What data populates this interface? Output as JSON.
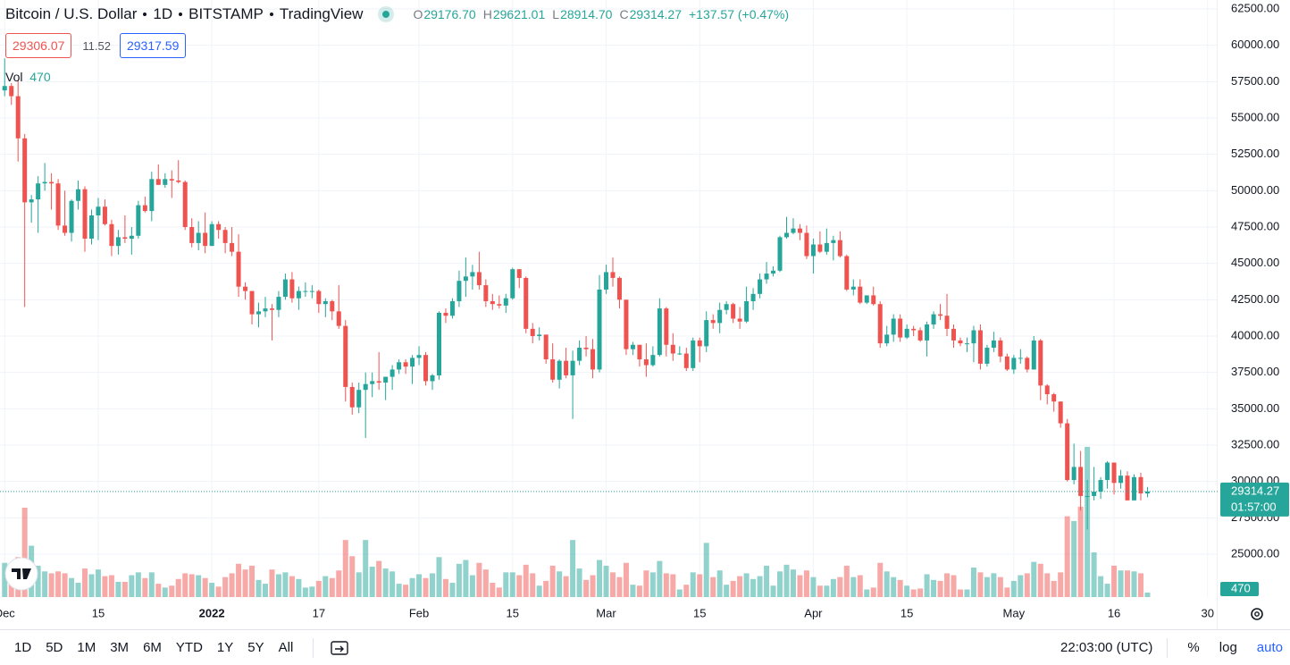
{
  "chart_data": {
    "type": "candlestick",
    "title_parts": [
      "Bitcoin / U.S. Dollar",
      "1D",
      "BITSTAMP",
      "TradingView"
    ],
    "ohlc_legend": [
      {
        "label": "O",
        "text": "29176.70"
      },
      {
        "label": "H",
        "text": "29621.01"
      },
      {
        "label": "L",
        "text": "28914.70"
      },
      {
        "label": "C",
        "text": "29314.27"
      }
    ],
    "change_text": "+137.57 (+0.47%)",
    "bid": "29306.07",
    "spread": "11.52",
    "ask": "29317.59",
    "volume_label": "Vol",
    "countdown": "01:57:00",
    "colors": {
      "up": "#26a69a",
      "down": "#ef5350",
      "volume_up": "rgba(38,166,154,0.5)",
      "volume_down": "rgba(239,83,80,0.5)"
    },
    "grid": true,
    "xlim": [
      -0.7,
      181.5
    ],
    "xticks": [
      {
        "value": 0,
        "label": "Dec"
      },
      {
        "value": 14,
        "label": "15"
      },
      {
        "value": 31,
        "label": "2022"
      },
      {
        "value": 47,
        "label": "17"
      },
      {
        "value": 62,
        "label": "Feb"
      },
      {
        "value": 76,
        "label": "15"
      },
      {
        "value": 90,
        "label": "Mar"
      },
      {
        "value": 104,
        "label": "15"
      },
      {
        "value": 121,
        "label": "Apr"
      },
      {
        "value": 135,
        "label": "15"
      },
      {
        "value": 151,
        "label": "May"
      },
      {
        "value": 166,
        "label": "16"
      },
      {
        "value": 180,
        "label": "30"
      }
    ],
    "ylim": [
      22050,
      63115
    ],
    "yticks": [
      {
        "value": 25000,
        "label": "25000.00"
      },
      {
        "value": 27500,
        "label": "27500.00"
      },
      {
        "value": 30000,
        "label": "30000.00"
      },
      {
        "value": 32500,
        "label": "32500.00"
      },
      {
        "value": 35000,
        "label": "35000.00"
      },
      {
        "value": 37500,
        "label": "37500.00"
      },
      {
        "value": 40000,
        "label": "40000.00"
      },
      {
        "value": 42500,
        "label": "42500.00"
      },
      {
        "value": 45000,
        "label": "45000.00"
      },
      {
        "value": 47500,
        "label": "47500.00"
      },
      {
        "value": 50000,
        "label": "50000.00"
      },
      {
        "value": 52500,
        "label": "52500.00"
      },
      {
        "value": 55000,
        "label": "55000.00"
      },
      {
        "value": 57500,
        "label": "57500.00"
      },
      {
        "value": 60000,
        "label": "60000.00"
      },
      {
        "value": 62500,
        "label": "62500.00"
      }
    ],
    "volume_ylim": [
      0,
      62800
    ],
    "ohlc": [
      [
        56900,
        59100,
        56500,
        57200
      ],
      [
        57200,
        57400,
        55900,
        56500
      ],
      [
        56500,
        57600,
        52000,
        53600
      ],
      [
        53600,
        53900,
        42000,
        49200
      ],
      [
        49200,
        49700,
        47800,
        49400
      ],
      [
        49400,
        51000,
        47100,
        50500
      ],
      [
        50500,
        51900,
        50000,
        50600
      ],
      [
        50600,
        51200,
        48700,
        50500
      ],
      [
        50500,
        50800,
        47300,
        47600
      ],
      [
        47600,
        50000,
        46900,
        47100
      ],
      [
        47100,
        49400,
        46500,
        49300
      ],
      [
        49300,
        50700,
        48700,
        50100
      ],
      [
        50100,
        50300,
        45800,
        46700
      ],
      [
        46700,
        48700,
        46300,
        48300
      ],
      [
        48300,
        49500,
        46600,
        48900
      ],
      [
        48900,
        49400,
        47600,
        47700
      ],
      [
        47700,
        48000,
        45500,
        46200
      ],
      [
        46200,
        47300,
        45600,
        46800
      ],
      [
        46800,
        48300,
        46400,
        46700
      ],
      [
        46700,
        47500,
        45600,
        46900
      ],
      [
        46900,
        49300,
        46700,
        49000
      ],
      [
        49000,
        49600,
        48500,
        48600
      ],
      [
        48600,
        51300,
        47900,
        50800
      ],
      [
        50800,
        51800,
        50400,
        50400
      ],
      [
        50400,
        51200,
        50200,
        50800
      ],
      [
        50800,
        51400,
        49500,
        50700
      ],
      [
        50700,
        52100,
        50500,
        50600
      ],
      [
        50600,
        50700,
        47300,
        47500
      ],
      [
        47500,
        48100,
        46100,
        46400
      ],
      [
        46400,
        47900,
        45900,
        47100
      ],
      [
        47100,
        48500,
        45700,
        46200
      ],
      [
        46200,
        47900,
        46200,
        47700
      ],
      [
        47700,
        47900,
        46700,
        47300
      ],
      [
        47300,
        47500,
        45700,
        46400
      ],
      [
        46400,
        47500,
        45500,
        45800
      ],
      [
        45800,
        47000,
        42700,
        43400
      ],
      [
        43400,
        43700,
        42500,
        43100
      ],
      [
        43100,
        43100,
        40800,
        41500
      ],
      [
        41500,
        42300,
        40600,
        41700
      ],
      [
        41700,
        42700,
        41300,
        41900
      ],
      [
        41900,
        42200,
        39700,
        41800
      ],
      [
        41800,
        43100,
        41300,
        42700
      ],
      [
        42700,
        44300,
        42500,
        43900
      ],
      [
        43900,
        44400,
        42300,
        42600
      ],
      [
        42600,
        43400,
        41800,
        43100
      ],
      [
        43100,
        43700,
        42700,
        43100
      ],
      [
        43100,
        43500,
        42600,
        43100
      ],
      [
        43100,
        43200,
        41600,
        42200
      ],
      [
        42200,
        42600,
        41300,
        42400
      ],
      [
        42400,
        42500,
        41100,
        41700
      ],
      [
        41700,
        43500,
        40500,
        40700
      ],
      [
        40700,
        41100,
        35500,
        36500
      ],
      [
        36500,
        36800,
        34600,
        35100
      ],
      [
        35100,
        36800,
        34700,
        36300
      ],
      [
        36300,
        37500,
        33000,
        36700
      ],
      [
        36700,
        37500,
        35800,
        36900
      ],
      [
        36900,
        38900,
        36300,
        36800
      ],
      [
        36800,
        37200,
        35600,
        37200
      ],
      [
        37200,
        38000,
        36300,
        37700
      ],
      [
        37700,
        38400,
        37400,
        38200
      ],
      [
        38200,
        38400,
        37400,
        37900
      ],
      [
        37900,
        38700,
        36700,
        38500
      ],
      [
        38500,
        39300,
        38000,
        38700
      ],
      [
        38700,
        38900,
        36600,
        36900
      ],
      [
        36900,
        37400,
        36300,
        37300
      ],
      [
        37300,
        41700,
        37000,
        41600
      ],
      [
        41600,
        41900,
        40900,
        41400
      ],
      [
        41400,
        42600,
        41200,
        42400
      ],
      [
        42400,
        44500,
        42000,
        43800
      ],
      [
        43800,
        45400,
        42700,
        44100
      ],
      [
        44100,
        44900,
        43200,
        44400
      ],
      [
        44400,
        45800,
        43200,
        43500
      ],
      [
        43500,
        43900,
        42000,
        42400
      ],
      [
        42400,
        42900,
        41800,
        42200
      ],
      [
        42200,
        42800,
        41900,
        42100
      ],
      [
        42100,
        42900,
        41600,
        42600
      ],
      [
        42600,
        44700,
        42500,
        44600
      ],
      [
        44600,
        44600,
        43300,
        44000
      ],
      [
        44000,
        44100,
        40200,
        40500
      ],
      [
        40500,
        40900,
        39500,
        40000
      ],
      [
        40000,
        40600,
        39700,
        40100
      ],
      [
        40100,
        40100,
        38100,
        38400
      ],
      [
        38400,
        39500,
        36800,
        37000
      ],
      [
        37000,
        38400,
        36400,
        38300
      ],
      [
        38300,
        39200,
        37100,
        37300
      ],
      [
        37300,
        39000,
        34300,
        38300
      ],
      [
        38300,
        39700,
        38000,
        39200
      ],
      [
        39200,
        40000,
        38600,
        39100
      ],
      [
        39100,
        39800,
        37100,
        37700
      ],
      [
        37700,
        44200,
        37500,
        43200
      ],
      [
        43200,
        44900,
        42900,
        44400
      ],
      [
        44400,
        45400,
        43400,
        44000
      ],
      [
        44000,
        44100,
        41900,
        42500
      ],
      [
        42500,
        42500,
        38700,
        39100
      ],
      [
        39100,
        39600,
        38700,
        39400
      ],
      [
        39400,
        39400,
        37900,
        38400
      ],
      [
        38400,
        39500,
        37200,
        38000
      ],
      [
        38000,
        39300,
        37900,
        38700
      ],
      [
        38700,
        42600,
        38600,
        41900
      ],
      [
        41900,
        42000,
        38600,
        39400
      ],
      [
        39400,
        40200,
        38300,
        38800
      ],
      [
        38800,
        39300,
        38700,
        38800
      ],
      [
        38800,
        39200,
        37600,
        37800
      ],
      [
        37800,
        39900,
        37600,
        39700
      ],
      [
        39700,
        39900,
        38200,
        39300
      ],
      [
        39300,
        41700,
        38900,
        41100
      ],
      [
        41100,
        41500,
        40500,
        40900
      ],
      [
        40900,
        42300,
        40200,
        41800
      ],
      [
        41800,
        42400,
        41500,
        42200
      ],
      [
        42200,
        42300,
        40900,
        41200
      ],
      [
        41200,
        42000,
        40500,
        41000
      ],
      [
        41000,
        43400,
        40900,
        42400
      ],
      [
        42400,
        43300,
        41800,
        42900
      ],
      [
        42900,
        44300,
        42600,
        43900
      ],
      [
        43900,
        45100,
        43600,
        44300
      ],
      [
        44300,
        44800,
        44100,
        44500
      ],
      [
        44500,
        46900,
        44400,
        46800
      ],
      [
        46800,
        48200,
        46700,
        47100
      ],
      [
        47100,
        48100,
        47000,
        47400
      ],
      [
        47400,
        47700,
        46600,
        47100
      ],
      [
        47100,
        47600,
        45300,
        45500
      ],
      [
        45500,
        46700,
        44300,
        46300
      ],
      [
        46300,
        47200,
        45700,
        45800
      ],
      [
        45800,
        47400,
        45600,
        46400
      ],
      [
        46400,
        46900,
        45200,
        46600
      ],
      [
        46600,
        47200,
        45400,
        45500
      ],
      [
        45500,
        45600,
        43100,
        43200
      ],
      [
        43200,
        43900,
        42800,
        43400
      ],
      [
        43400,
        43900,
        42200,
        42300
      ],
      [
        42300,
        42800,
        42200,
        42800
      ],
      [
        42800,
        43400,
        42100,
        42200
      ],
      [
        42200,
        42400,
        39200,
        39500
      ],
      [
        39500,
        40700,
        39300,
        40100
      ],
      [
        40100,
        41500,
        39600,
        41200
      ],
      [
        41200,
        41500,
        39600,
        39900
      ],
      [
        39900,
        40800,
        39800,
        40500
      ],
      [
        40500,
        40700,
        40000,
        40400
      ],
      [
        40400,
        40600,
        39600,
        39700
      ],
      [
        39700,
        41000,
        38600,
        40800
      ],
      [
        40800,
        41700,
        40500,
        41500
      ],
      [
        41500,
        42200,
        41100,
        41400
      ],
      [
        41400,
        42900,
        40000,
        40500
      ],
      [
        40500,
        40800,
        39200,
        39700
      ],
      [
        39700,
        39900,
        39300,
        39500
      ],
      [
        39500,
        39900,
        38900,
        39500
      ],
      [
        39500,
        40700,
        38200,
        40400
      ],
      [
        40400,
        40800,
        37700,
        38100
      ],
      [
        38100,
        39400,
        37900,
        39200
      ],
      [
        39200,
        40300,
        38900,
        39700
      ],
      [
        39700,
        39900,
        38200,
        38600
      ],
      [
        38600,
        38800,
        37600,
        37700
      ],
      [
        37700,
        38700,
        37400,
        38500
      ],
      [
        38500,
        39100,
        38100,
        38500
      ],
      [
        38500,
        38600,
        37500,
        37700
      ],
      [
        37700,
        40000,
        37700,
        39700
      ],
      [
        39700,
        39800,
        35600,
        36600
      ],
      [
        36600,
        36700,
        35300,
        36000
      ],
      [
        36000,
        36100,
        34800,
        35500
      ],
      [
        35500,
        35500,
        33700,
        34000
      ],
      [
        34000,
        34300,
        30000,
        30100
      ],
      [
        30100,
        32600,
        29800,
        31000
      ],
      [
        31000,
        32100,
        28000,
        29000
      ],
      [
        29000,
        30100,
        26700,
        29000
      ],
      [
        29000,
        31000,
        28700,
        29300
      ],
      [
        29300,
        30300,
        28800,
        30100
      ],
      [
        30100,
        31400,
        29500,
        31300
      ],
      [
        31300,
        31300,
        29100,
        29900
      ],
      [
        29900,
        30800,
        29500,
        30400
      ],
      [
        30400,
        30700,
        28700,
        28700
      ],
      [
        28700,
        30500,
        28700,
        30300
      ],
      [
        30300,
        30600,
        28700,
        29176.7
      ],
      [
        29176.7,
        29621.01,
        28914.7,
        29314.27
      ]
    ],
    "volume": [
      3600,
      2600,
      4200,
      9400,
      5400,
      3300,
      2700,
      2500,
      2700,
      2500,
      2000,
      1500,
      3000,
      2400,
      2900,
      2200,
      2300,
      1600,
      1600,
      2300,
      2600,
      2000,
      2600,
      1400,
      1000,
      1200,
      1900,
      2500,
      2400,
      2300,
      2000,
      1500,
      1100,
      2100,
      2500,
      3500,
      2900,
      3300,
      1800,
      1400,
      2900,
      2400,
      2600,
      2200,
      1900,
      1000,
      1100,
      1700,
      2200,
      2000,
      2800,
      6000,
      4300,
      2600,
      6000,
      3200,
      3800,
      3000,
      2700,
      1400,
      1300,
      2000,
      2400,
      2000,
      2500,
      4200,
      1900,
      1500,
      3500,
      3900,
      2300,
      3600,
      2900,
      1500,
      1000,
      2600,
      2600,
      2300,
      3400,
      2500,
      1200,
      1700,
      3300,
      2700,
      2200,
      6000,
      3000,
      1800,
      2300,
      3900,
      3300,
      2600,
      2100,
      3600,
      1300,
      1200,
      2800,
      2600,
      3800,
      2500,
      2400,
      800,
      1300,
      2600,
      2400,
      5700,
      2100,
      2800,
      1300,
      1700,
      2200,
      2500,
      1900,
      2200,
      3300,
      1200,
      2700,
      3400,
      2900,
      2300,
      2800,
      2100,
      1200,
      1200,
      1900,
      2100,
      3300,
      2100,
      2300,
      800,
      1000,
      3600,
      2700,
      2100,
      1800,
      1200,
      800,
      900,
      2400,
      1800,
      1700,
      2500,
      2300,
      800,
      800,
      3100,
      2600,
      2100,
      2500,
      2100,
      1000,
      1700,
      2300,
      2500,
      3700,
      3500,
      2500,
      1700,
      2600,
      8500,
      8000,
      9500,
      15800,
      4700,
      2200,
      1400,
      3300,
      2800,
      2800,
      2700,
      2500,
      470
    ]
  },
  "toolbar": {
    "ranges": [
      "1D",
      "5D",
      "1M",
      "3M",
      "6M",
      "YTD",
      "1Y",
      "5Y",
      "All"
    ],
    "time": "22:03:00 (UTC)",
    "options": [
      "%",
      "log",
      "auto"
    ]
  }
}
